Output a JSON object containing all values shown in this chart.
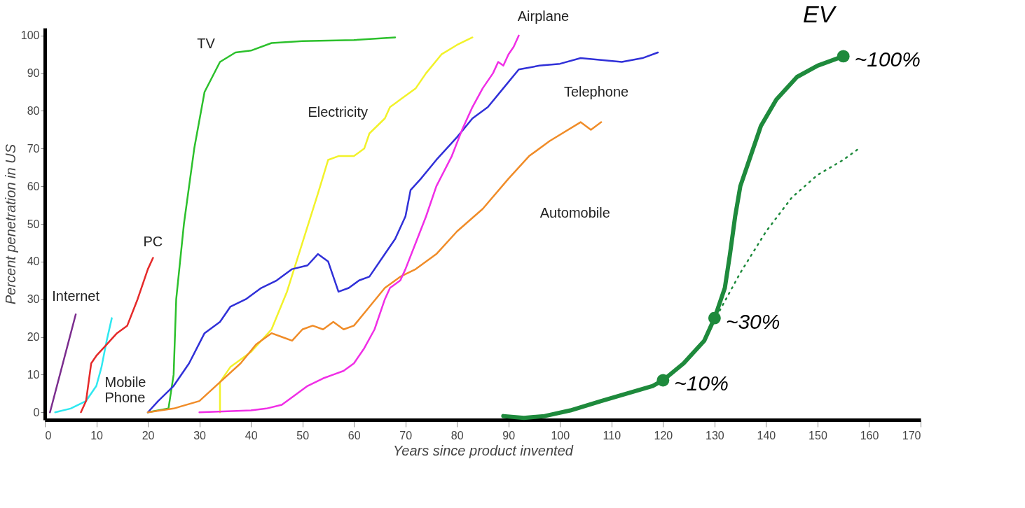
{
  "chart_data": {
    "type": "line",
    "xlabel": "Years since product invented",
    "ylabel": "Percent penetration in US",
    "xlim": [
      0,
      170
    ],
    "ylim": [
      -2,
      102
    ],
    "xticks": [
      0,
      10,
      20,
      30,
      40,
      50,
      60,
      70,
      80,
      90,
      100,
      110,
      120,
      130,
      140,
      150,
      160,
      170
    ],
    "yticks": [
      0,
      10,
      20,
      30,
      40,
      50,
      60,
      70,
      80,
      90,
      100
    ],
    "grid": false,
    "line_style": "solid",
    "marker": "none",
    "series": [
      {
        "name": "Internet",
        "color": "#7b2d8e",
        "x": [
          1,
          6
        ],
        "values": [
          0,
          26
        ]
      },
      {
        "name": "Mobile Phone",
        "color": "#2ee8f0",
        "x": [
          2,
          5,
          8,
          10,
          11,
          12,
          13
        ],
        "values": [
          0,
          1,
          3,
          7,
          12,
          19,
          25
        ]
      },
      {
        "name": "PC",
        "color": "#e52a2a",
        "x": [
          7,
          8,
          9,
          10,
          12,
          14,
          16,
          18,
          20,
          21
        ],
        "values": [
          0,
          3,
          13,
          15,
          18,
          21,
          23,
          30,
          38,
          41
        ]
      },
      {
        "name": "TV",
        "color": "#2cc02c",
        "x": [
          20,
          24,
          25,
          25.5,
          27,
          29,
          31,
          34,
          37,
          40,
          44,
          50,
          60,
          68
        ],
        "values": [
          0,
          1,
          10,
          30,
          50,
          70,
          85,
          93,
          95.5,
          96,
          98,
          98.5,
          98.8,
          99.5
        ]
      },
      {
        "name": "Electricity",
        "color": "#f2f22a",
        "x": [
          34,
          34,
          36,
          40,
          44,
          47,
          50,
          53,
          55,
          57,
          60,
          62,
          63,
          66,
          67,
          68,
          69,
          72,
          74,
          77,
          80,
          83
        ],
        "values": [
          0,
          8,
          12,
          16,
          22,
          32,
          45,
          58,
          67,
          68,
          68,
          70,
          74,
          78,
          81,
          82,
          83,
          86,
          90,
          95,
          97.5,
          99.5
        ]
      },
      {
        "name": "Telephone",
        "color": "#3030d8",
        "x": [
          20,
          22,
          25,
          28,
          31,
          34,
          36,
          39,
          42,
          45,
          48,
          51,
          53,
          55,
          57,
          59,
          61,
          63,
          66,
          68,
          70,
          71,
          73,
          76,
          80,
          83,
          86,
          89,
          92,
          96,
          100,
          104,
          108,
          112,
          116,
          119
        ],
        "values": [
          0,
          3,
          7,
          13,
          21,
          24,
          28,
          30,
          33,
          35,
          38,
          39,
          42,
          40,
          32,
          33,
          35,
          36,
          42,
          46,
          52,
          59,
          62,
          67,
          73,
          78,
          81,
          86,
          91,
          92,
          92.5,
          94,
          93.5,
          93,
          94,
          95.5
        ]
      },
      {
        "name": "Automobile",
        "color": "#f08c28",
        "x": [
          20,
          25,
          30,
          34,
          38,
          41,
          44,
          46,
          48,
          50,
          52,
          54,
          56,
          58,
          60,
          63,
          66,
          69,
          72,
          76,
          80,
          85,
          90,
          94,
          98,
          104,
          106,
          108
        ],
        "values": [
          0,
          1,
          3,
          8,
          13,
          18,
          21,
          20,
          19,
          22,
          23,
          22,
          24,
          22,
          23,
          28,
          33,
          36,
          38,
          42,
          48,
          54,
          62,
          68,
          72,
          77,
          75,
          77
        ]
      },
      {
        "name": "Airplane",
        "color": "#f02ee6",
        "x": [
          30,
          40,
          43,
          46,
          48,
          51,
          54,
          56,
          58,
          60,
          62,
          64,
          66,
          67,
          69,
          70,
          72,
          74,
          76,
          79,
          81,
          83,
          85,
          87,
          88,
          89,
          90,
          91,
          92
        ],
        "values": [
          0,
          0.5,
          1,
          2,
          4,
          7,
          9,
          10,
          11,
          13,
          17,
          22,
          30,
          33,
          35,
          38,
          45,
          52,
          60,
          68,
          75,
          81,
          86,
          90,
          93,
          92,
          95,
          97,
          100
        ]
      },
      {
        "name": "EV",
        "color": "#1e8a3c",
        "x": [
          89,
          93,
          97,
          102,
          108,
          113,
          118,
          120,
          124,
          128,
          130,
          132,
          133,
          134,
          135,
          137,
          139,
          142,
          146,
          150,
          155
        ],
        "values": [
          -1,
          -1.5,
          -1,
          0.5,
          3,
          5,
          7,
          8.5,
          13,
          19,
          25,
          33,
          42,
          52,
          60,
          68,
          76,
          83,
          89,
          92,
          94.5
        ]
      },
      {
        "color": "#1e8a3c",
        "line_style": "dotted",
        "x": [
          131,
          135,
          140,
          145,
          150,
          155,
          158
        ],
        "values": [
          27,
          37,
          48,
          57,
          63,
          67,
          70
        ]
      },
      {
        "type": "scatter",
        "marker": "circle",
        "color": "#1e8a3c",
        "x": [
          120,
          130,
          155
        ],
        "values": [
          8.5,
          25,
          94.5
        ]
      }
    ],
    "annotations": [
      {
        "text": "~10%",
        "x": 120,
        "y": 8.5
      },
      {
        "text": "~30%",
        "x": 130,
        "y": 25
      },
      {
        "text": "~100%",
        "x": 155,
        "y": 94.5
      }
    ]
  }
}
